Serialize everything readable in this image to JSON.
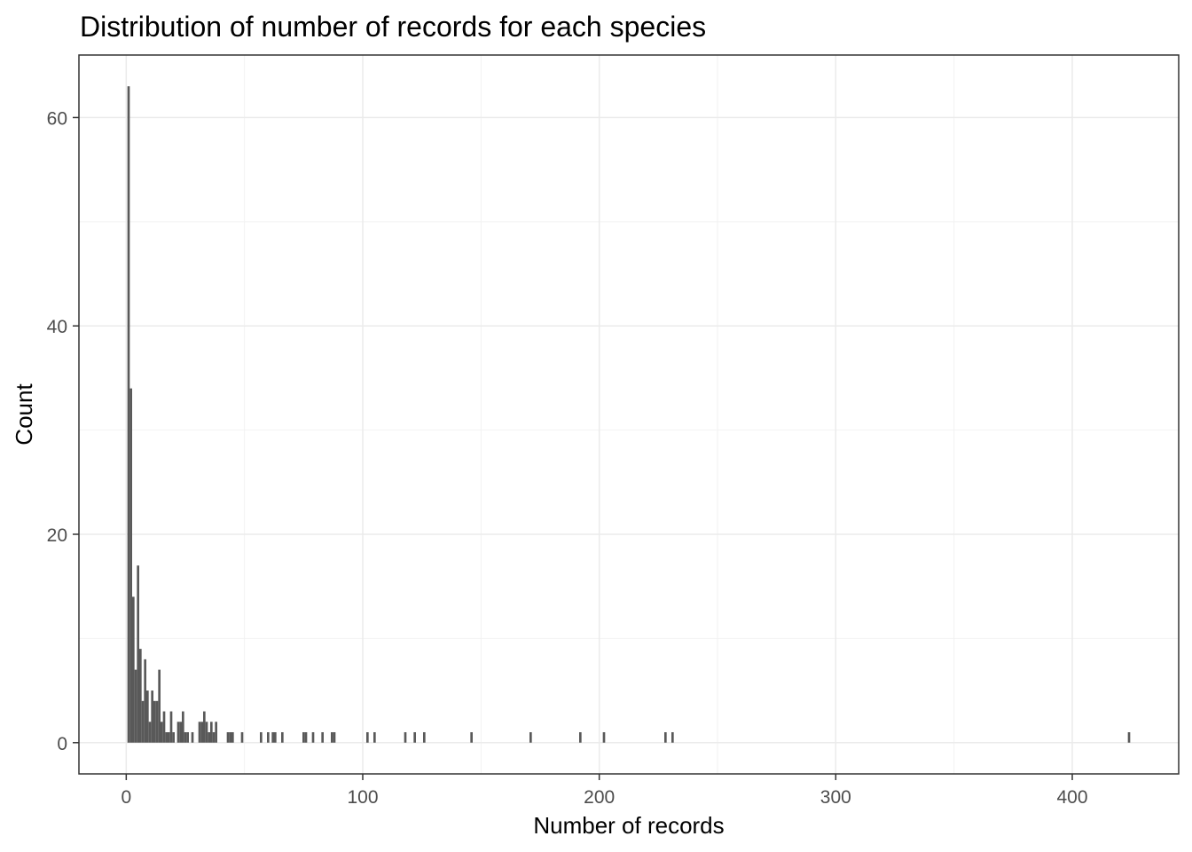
{
  "chart_data": {
    "type": "bar",
    "title": "Distribution of number of records for each species",
    "xlabel": "Number of records",
    "ylabel": "Count",
    "xlim": [
      -20,
      445
    ],
    "ylim": [
      -3,
      66
    ],
    "x_ticks": [
      0,
      100,
      200,
      300,
      400
    ],
    "y_ticks": [
      0,
      20,
      40,
      60
    ],
    "grid": true,
    "bar_color": "#595959",
    "x": [
      1,
      2,
      3,
      4,
      5,
      6,
      7,
      8,
      9,
      10,
      11,
      12,
      13,
      14,
      15,
      16,
      17,
      18,
      19,
      20,
      22,
      23,
      24,
      25,
      26,
      28,
      31,
      32,
      33,
      34,
      35,
      36,
      37,
      38,
      43,
      44,
      45,
      49,
      57,
      60,
      62,
      63,
      66,
      75,
      76,
      79,
      83,
      87,
      88,
      102,
      105,
      118,
      122,
      126,
      146,
      171,
      192,
      202,
      228,
      231,
      424
    ],
    "values": [
      63,
      34,
      14,
      7,
      17,
      9,
      4,
      8,
      5,
      2,
      5,
      4,
      4,
      7,
      2,
      3,
      1,
      1,
      3,
      1,
      2,
      2,
      3,
      1,
      1,
      1,
      2,
      2,
      3,
      2,
      1,
      2,
      1,
      2,
      1,
      1,
      1,
      1,
      1,
      1,
      1,
      1,
      1,
      1,
      1,
      1,
      1,
      1,
      1,
      1,
      1,
      1,
      1,
      1,
      1,
      1,
      1,
      1,
      1,
      1,
      1
    ]
  }
}
